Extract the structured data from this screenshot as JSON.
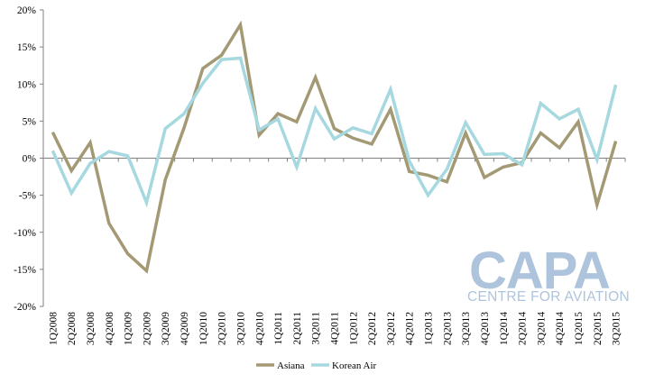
{
  "chart_data": {
    "type": "line",
    "categories": [
      "1Q2008",
      "2Q2008",
      "3Q2008",
      "4Q2008",
      "1Q2009",
      "2Q2009",
      "3Q2009",
      "4Q2009",
      "1Q2010",
      "2Q2010",
      "3Q2010",
      "4Q2010",
      "1Q2011",
      "2Q2011",
      "3Q2011",
      "4Q2011",
      "1Q2012",
      "2Q2012",
      "3Q2012",
      "4Q2012",
      "1Q2013",
      "2Q2013",
      "3Q2013",
      "4Q2013",
      "1Q2014",
      "2Q2014",
      "3Q2014",
      "4Q2014",
      "1Q2015",
      "2Q2015",
      "3Q2015"
    ],
    "series": [
      {
        "name": "Asiana",
        "color": "#a39a75",
        "values": [
          3.5,
          -1.7,
          2.1,
          -8.8,
          -12.9,
          -15.2,
          -2.9,
          4.1,
          12.1,
          13.9,
          18.0,
          3.1,
          6.0,
          4.9,
          10.9,
          4.0,
          2.7,
          1.9,
          6.6,
          -1.8,
          -2.3,
          -3.2,
          3.4,
          -2.6,
          -1.2,
          -0.6,
          3.4,
          1.4,
          4.9,
          -6.3,
          2.3
        ]
      },
      {
        "name": "Korean Air",
        "color": "#a6d8e0",
        "values": [
          1.0,
          -4.7,
          -0.7,
          0.9,
          0.3,
          -6.0,
          4.0,
          6.0,
          10.1,
          13.3,
          13.5,
          3.8,
          5.3,
          -1.2,
          6.7,
          2.6,
          4.1,
          3.3,
          9.3,
          -0.4,
          -5.0,
          -1.5,
          4.8,
          0.5,
          0.6,
          -0.9,
          7.4,
          5.3,
          6.6,
          -0.2,
          9.9
        ]
      }
    ],
    "ylim": [
      -20,
      20
    ],
    "yticks": [
      -20,
      -15,
      -10,
      -5,
      0,
      5,
      10,
      15,
      20
    ],
    "ytick_labels": [
      "-20%",
      "-15%",
      "-10%",
      "-5%",
      "0%",
      "5%",
      "10%",
      "15%",
      "20%"
    ],
    "grid": false,
    "legend_position": "bottom-center",
    "title": "",
    "xlabel": "",
    "ylabel": ""
  },
  "watermark": {
    "logo_text": "CAPA",
    "tagline": "CENTRE FOR AVIATION",
    "color": "#aec4dc"
  }
}
